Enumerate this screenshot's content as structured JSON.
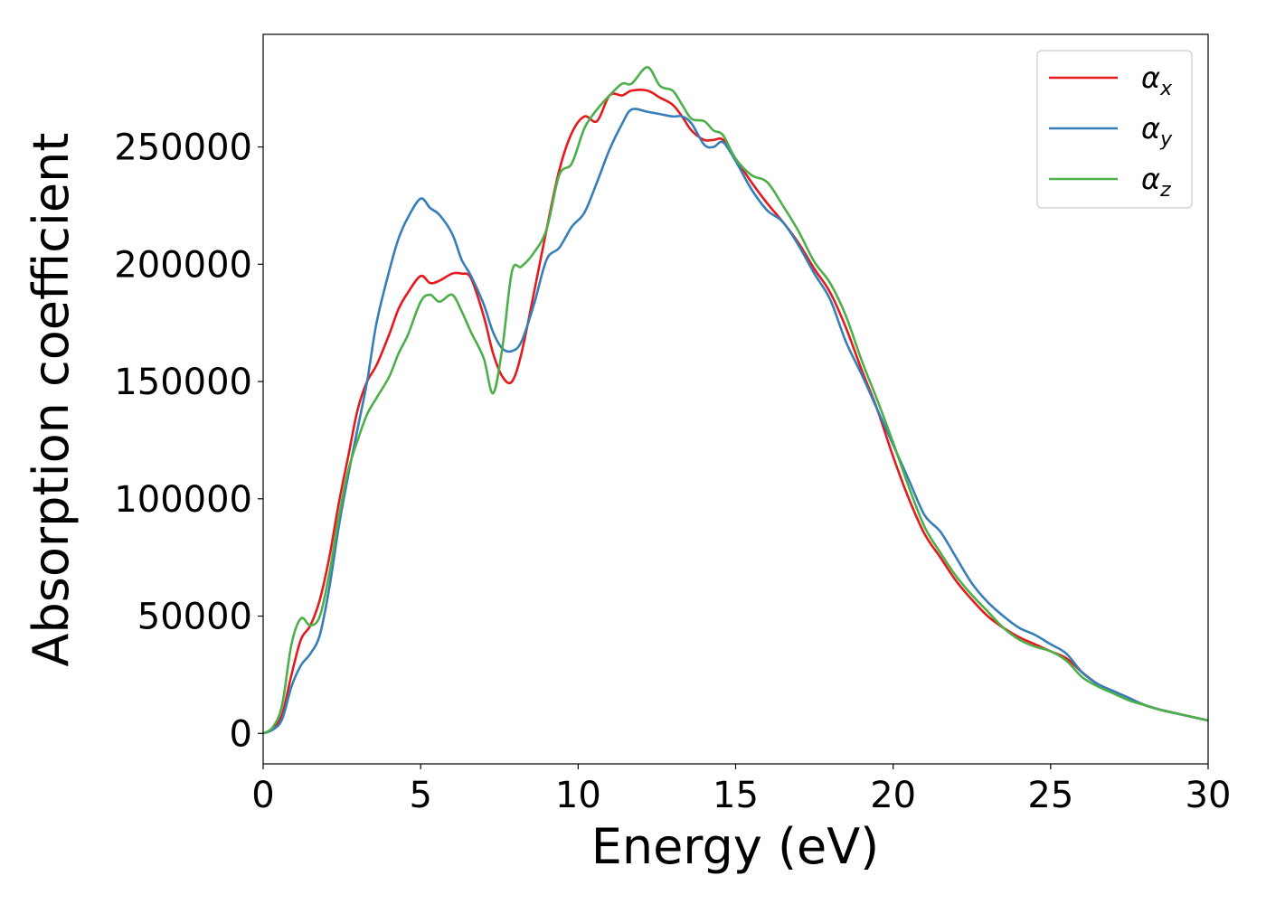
{
  "chart_data": {
    "type": "line",
    "xlabel": "Energy (eV)",
    "ylabel": "Absorption coefficient",
    "xlim": [
      0,
      30
    ],
    "ylim": [
      -13000,
      298000
    ],
    "xticks": [
      0,
      5,
      10,
      15,
      20,
      25,
      30
    ],
    "xtick_labels": [
      "0",
      "5",
      "10",
      "15",
      "20",
      "25",
      "30"
    ],
    "yticks": [
      0,
      50000,
      100000,
      150000,
      200000,
      250000
    ],
    "ytick_labels": [
      "0",
      "50000",
      "100000",
      "150000",
      "200000",
      "250000"
    ],
    "grid": false,
    "legend_position": "top-right",
    "series": [
      {
        "name": "α",
        "subscript": "x",
        "color": "#e41a1c",
        "points": [
          [
            0,
            0
          ],
          [
            0.3,
            2000
          ],
          [
            0.6,
            8000
          ],
          [
            0.9,
            25000
          ],
          [
            1.2,
            40000
          ],
          [
            1.5,
            46000
          ],
          [
            1.8,
            57000
          ],
          [
            2.1,
            75000
          ],
          [
            2.4,
            98000
          ],
          [
            2.7,
            118000
          ],
          [
            3.0,
            138000
          ],
          [
            3.3,
            150000
          ],
          [
            3.6,
            157000
          ],
          [
            4.0,
            170000
          ],
          [
            4.3,
            181000
          ],
          [
            4.6,
            188000
          ],
          [
            5.0,
            195000
          ],
          [
            5.3,
            192000
          ],
          [
            5.6,
            193000
          ],
          [
            6.0,
            196000
          ],
          [
            6.3,
            196000
          ],
          [
            6.6,
            194000
          ],
          [
            7.0,
            178000
          ],
          [
            7.3,
            162000
          ],
          [
            7.6,
            152000
          ],
          [
            7.9,
            150000
          ],
          [
            8.2,
            162000
          ],
          [
            8.6,
            188000
          ],
          [
            9.0,
            215000
          ],
          [
            9.4,
            240000
          ],
          [
            9.8,
            256000
          ],
          [
            10.2,
            263000
          ],
          [
            10.6,
            261000
          ],
          [
            11.0,
            272000
          ],
          [
            11.4,
            272000
          ],
          [
            11.7,
            274000
          ],
          [
            12.2,
            274000
          ],
          [
            12.6,
            271000
          ],
          [
            13.0,
            268000
          ],
          [
            13.3,
            263000
          ],
          [
            13.6,
            257000
          ],
          [
            14.0,
            253000
          ],
          [
            14.3,
            253000
          ],
          [
            14.6,
            253000
          ],
          [
            15.0,
            245000
          ],
          [
            15.5,
            235000
          ],
          [
            16.0,
            226000
          ],
          [
            16.5,
            218000
          ],
          [
            17.0,
            209000
          ],
          [
            17.5,
            198000
          ],
          [
            18.0,
            188000
          ],
          [
            18.5,
            173000
          ],
          [
            19.0,
            155000
          ],
          [
            19.5,
            138000
          ],
          [
            20.0,
            118000
          ],
          [
            20.5,
            100000
          ],
          [
            21.0,
            85000
          ],
          [
            21.5,
            75000
          ],
          [
            22.0,
            65000
          ],
          [
            22.5,
            57000
          ],
          [
            23.0,
            50000
          ],
          [
            23.5,
            45000
          ],
          [
            24.0,
            41000
          ],
          [
            24.5,
            38000
          ],
          [
            25.0,
            35000
          ],
          [
            25.5,
            32000
          ],
          [
            26.0,
            26000
          ],
          [
            26.5,
            21000
          ],
          [
            27.0,
            18000
          ],
          [
            27.5,
            15000
          ],
          [
            28.0,
            12000
          ],
          [
            28.5,
            10000
          ],
          [
            29.0,
            8500
          ],
          [
            29.5,
            7000
          ],
          [
            30.0,
            5500
          ]
        ]
      },
      {
        "name": "α",
        "subscript": "y",
        "color": "#377eb8",
        "points": [
          [
            0,
            0
          ],
          [
            0.3,
            1500
          ],
          [
            0.6,
            6000
          ],
          [
            0.9,
            20000
          ],
          [
            1.2,
            29000
          ],
          [
            1.5,
            34000
          ],
          [
            1.8,
            42000
          ],
          [
            2.1,
            62000
          ],
          [
            2.4,
            88000
          ],
          [
            2.7,
            110000
          ],
          [
            3.0,
            130000
          ],
          [
            3.3,
            150000
          ],
          [
            3.6,
            175000
          ],
          [
            4.0,
            197000
          ],
          [
            4.3,
            211000
          ],
          [
            4.6,
            220000
          ],
          [
            5.0,
            228000
          ],
          [
            5.3,
            224000
          ],
          [
            5.6,
            221000
          ],
          [
            6.0,
            213000
          ],
          [
            6.3,
            202000
          ],
          [
            6.6,
            195000
          ],
          [
            7.0,
            183000
          ],
          [
            7.3,
            171000
          ],
          [
            7.6,
            164000
          ],
          [
            7.9,
            163000
          ],
          [
            8.2,
            167000
          ],
          [
            8.6,
            183000
          ],
          [
            9.0,
            202000
          ],
          [
            9.4,
            207000
          ],
          [
            9.8,
            216000
          ],
          [
            10.2,
            222000
          ],
          [
            10.6,
            235000
          ],
          [
            11.0,
            249000
          ],
          [
            11.4,
            260000
          ],
          [
            11.7,
            266000
          ],
          [
            12.2,
            265000
          ],
          [
            12.6,
            264000
          ],
          [
            13.0,
            263000
          ],
          [
            13.3,
            263000
          ],
          [
            13.6,
            260000
          ],
          [
            14.0,
            251000
          ],
          [
            14.3,
            250000
          ],
          [
            14.6,
            252000
          ],
          [
            15.0,
            244000
          ],
          [
            15.5,
            232000
          ],
          [
            16.0,
            223000
          ],
          [
            16.5,
            218000
          ],
          [
            17.0,
            208000
          ],
          [
            17.5,
            196000
          ],
          [
            18.0,
            185000
          ],
          [
            18.5,
            167000
          ],
          [
            19.0,
            153000
          ],
          [
            19.5,
            138000
          ],
          [
            20.0,
            123000
          ],
          [
            20.5,
            108000
          ],
          [
            21.0,
            93000
          ],
          [
            21.5,
            86000
          ],
          [
            22.0,
            75000
          ],
          [
            22.5,
            64000
          ],
          [
            23.0,
            56000
          ],
          [
            23.5,
            50000
          ],
          [
            24.0,
            45000
          ],
          [
            24.5,
            42000
          ],
          [
            25.0,
            38000
          ],
          [
            25.5,
            34000
          ],
          [
            26.0,
            26000
          ],
          [
            26.5,
            21000
          ],
          [
            27.0,
            18000
          ],
          [
            27.5,
            15000
          ],
          [
            28.0,
            12000
          ],
          [
            28.5,
            10000
          ],
          [
            29.0,
            8500
          ],
          [
            29.5,
            7000
          ],
          [
            30.0,
            5500
          ]
        ]
      },
      {
        "name": "α",
        "subscript": "z",
        "color": "#4daf4a",
        "points": [
          [
            0,
            0
          ],
          [
            0.3,
            2500
          ],
          [
            0.6,
            12000
          ],
          [
            0.9,
            38000
          ],
          [
            1.2,
            49000
          ],
          [
            1.5,
            46000
          ],
          [
            1.8,
            50000
          ],
          [
            2.1,
            68000
          ],
          [
            2.4,
            92000
          ],
          [
            2.7,
            112000
          ],
          [
            3.0,
            125000
          ],
          [
            3.3,
            136000
          ],
          [
            3.6,
            143000
          ],
          [
            4.0,
            152000
          ],
          [
            4.3,
            162000
          ],
          [
            4.6,
            170000
          ],
          [
            5.0,
            184000
          ],
          [
            5.3,
            187000
          ],
          [
            5.6,
            184000
          ],
          [
            6.0,
            187000
          ],
          [
            6.3,
            180000
          ],
          [
            6.6,
            171000
          ],
          [
            7.0,
            160000
          ],
          [
            7.3,
            145000
          ],
          [
            7.6,
            165000
          ],
          [
            7.9,
            197000
          ],
          [
            8.2,
            199000
          ],
          [
            8.6,
            205000
          ],
          [
            9.0,
            215000
          ],
          [
            9.4,
            238000
          ],
          [
            9.8,
            243000
          ],
          [
            10.2,
            258000
          ],
          [
            10.6,
            266000
          ],
          [
            11.0,
            272000
          ],
          [
            11.4,
            277000
          ],
          [
            11.7,
            277000
          ],
          [
            12.2,
            284000
          ],
          [
            12.6,
            276000
          ],
          [
            13.0,
            274000
          ],
          [
            13.3,
            268000
          ],
          [
            13.6,
            262000
          ],
          [
            14.0,
            261000
          ],
          [
            14.3,
            257000
          ],
          [
            14.6,
            255000
          ],
          [
            15.0,
            245000
          ],
          [
            15.5,
            238000
          ],
          [
            16.0,
            235000
          ],
          [
            16.5,
            225000
          ],
          [
            17.0,
            214000
          ],
          [
            17.5,
            201000
          ],
          [
            18.0,
            192000
          ],
          [
            18.5,
            178000
          ],
          [
            19.0,
            159000
          ],
          [
            19.5,
            142000
          ],
          [
            20.0,
            124000
          ],
          [
            20.5,
            105000
          ],
          [
            21.0,
            88000
          ],
          [
            21.5,
            77000
          ],
          [
            22.0,
            67000
          ],
          [
            22.5,
            59000
          ],
          [
            23.0,
            52000
          ],
          [
            23.5,
            45000
          ],
          [
            24.0,
            40000
          ],
          [
            24.5,
            37000
          ],
          [
            25.0,
            35000
          ],
          [
            25.5,
            31000
          ],
          [
            26.0,
            24000
          ],
          [
            26.5,
            20000
          ],
          [
            27.0,
            17000
          ],
          [
            27.5,
            14000
          ],
          [
            28.0,
            12000
          ],
          [
            28.5,
            10000
          ],
          [
            29.0,
            8500
          ],
          [
            29.5,
            7000
          ],
          [
            30.0,
            5500
          ]
        ]
      }
    ]
  }
}
